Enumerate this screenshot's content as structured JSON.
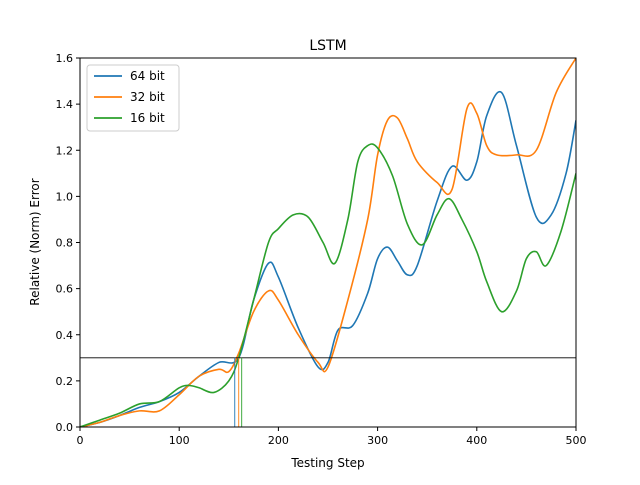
{
  "chart_data": {
    "type": "line",
    "title": "LSTM",
    "xlabel": "Testing Step",
    "ylabel": "Relative (Norm) Error",
    "xlim": [
      0,
      500
    ],
    "ylim": [
      0,
      1.6
    ],
    "xticks": [
      0,
      100,
      200,
      300,
      400,
      500
    ],
    "yticks": [
      0.0,
      0.2,
      0.4,
      0.6,
      0.8,
      1.0,
      1.2,
      1.4,
      1.6
    ],
    "grid": false,
    "legend": "top-left",
    "threshold_line": {
      "y": 0.3,
      "color": "#000000"
    },
    "series": [
      {
        "name": "64 bit",
        "color": "#1f77b4",
        "crossing_x": 156,
        "x": [
          0,
          20,
          40,
          60,
          80,
          100,
          120,
          140,
          160,
          175,
          190,
          200,
          220,
          240,
          250,
          260,
          275,
          290,
          300,
          310,
          320,
          330,
          340,
          360,
          375,
          390,
          400,
          410,
          425,
          440,
          460,
          475,
          490,
          500
        ],
        "y": [
          0,
          0.02,
          0.05,
          0.085,
          0.11,
          0.15,
          0.22,
          0.28,
          0.3,
          0.55,
          0.71,
          0.65,
          0.43,
          0.26,
          0.28,
          0.42,
          0.44,
          0.58,
          0.73,
          0.78,
          0.72,
          0.66,
          0.7,
          0.98,
          1.13,
          1.07,
          1.15,
          1.35,
          1.45,
          1.22,
          0.91,
          0.92,
          1.1,
          1.33
        ]
      },
      {
        "name": "32 bit",
        "color": "#ff7f0e",
        "crossing_x": 160,
        "x": [
          0,
          20,
          40,
          60,
          80,
          100,
          120,
          140,
          150,
          160,
          175,
          190,
          200,
          220,
          240,
          250,
          270,
          290,
          300,
          310,
          320,
          330,
          340,
          360,
          375,
          390,
          400,
          410,
          420,
          440,
          460,
          480,
          500
        ],
        "y": [
          0,
          0.02,
          0.05,
          0.07,
          0.07,
          0.14,
          0.22,
          0.25,
          0.24,
          0.32,
          0.5,
          0.59,
          0.55,
          0.4,
          0.28,
          0.26,
          0.55,
          0.9,
          1.18,
          1.33,
          1.34,
          1.25,
          1.15,
          1.06,
          1.03,
          1.38,
          1.36,
          1.22,
          1.18,
          1.18,
          1.2,
          1.45,
          1.6
        ]
      },
      {
        "name": "16 bit",
        "color": "#2ca02c",
        "crossing_x": 163,
        "x": [
          0,
          20,
          40,
          60,
          80,
          100,
          110,
          120,
          135,
          150,
          160,
          175,
          190,
          200,
          215,
          230,
          245,
          257,
          270,
          280,
          290,
          300,
          315,
          330,
          345,
          360,
          372,
          385,
          400,
          410,
          425,
          440,
          450,
          460,
          470,
          485,
          500
        ],
        "y": [
          0,
          0.03,
          0.06,
          0.1,
          0.11,
          0.17,
          0.18,
          0.17,
          0.15,
          0.2,
          0.3,
          0.55,
          0.8,
          0.86,
          0.92,
          0.91,
          0.8,
          0.71,
          0.9,
          1.15,
          1.22,
          1.21,
          1.09,
          0.88,
          0.79,
          0.92,
          0.99,
          0.9,
          0.76,
          0.63,
          0.5,
          0.59,
          0.73,
          0.76,
          0.7,
          0.85,
          1.1
        ]
      }
    ]
  }
}
